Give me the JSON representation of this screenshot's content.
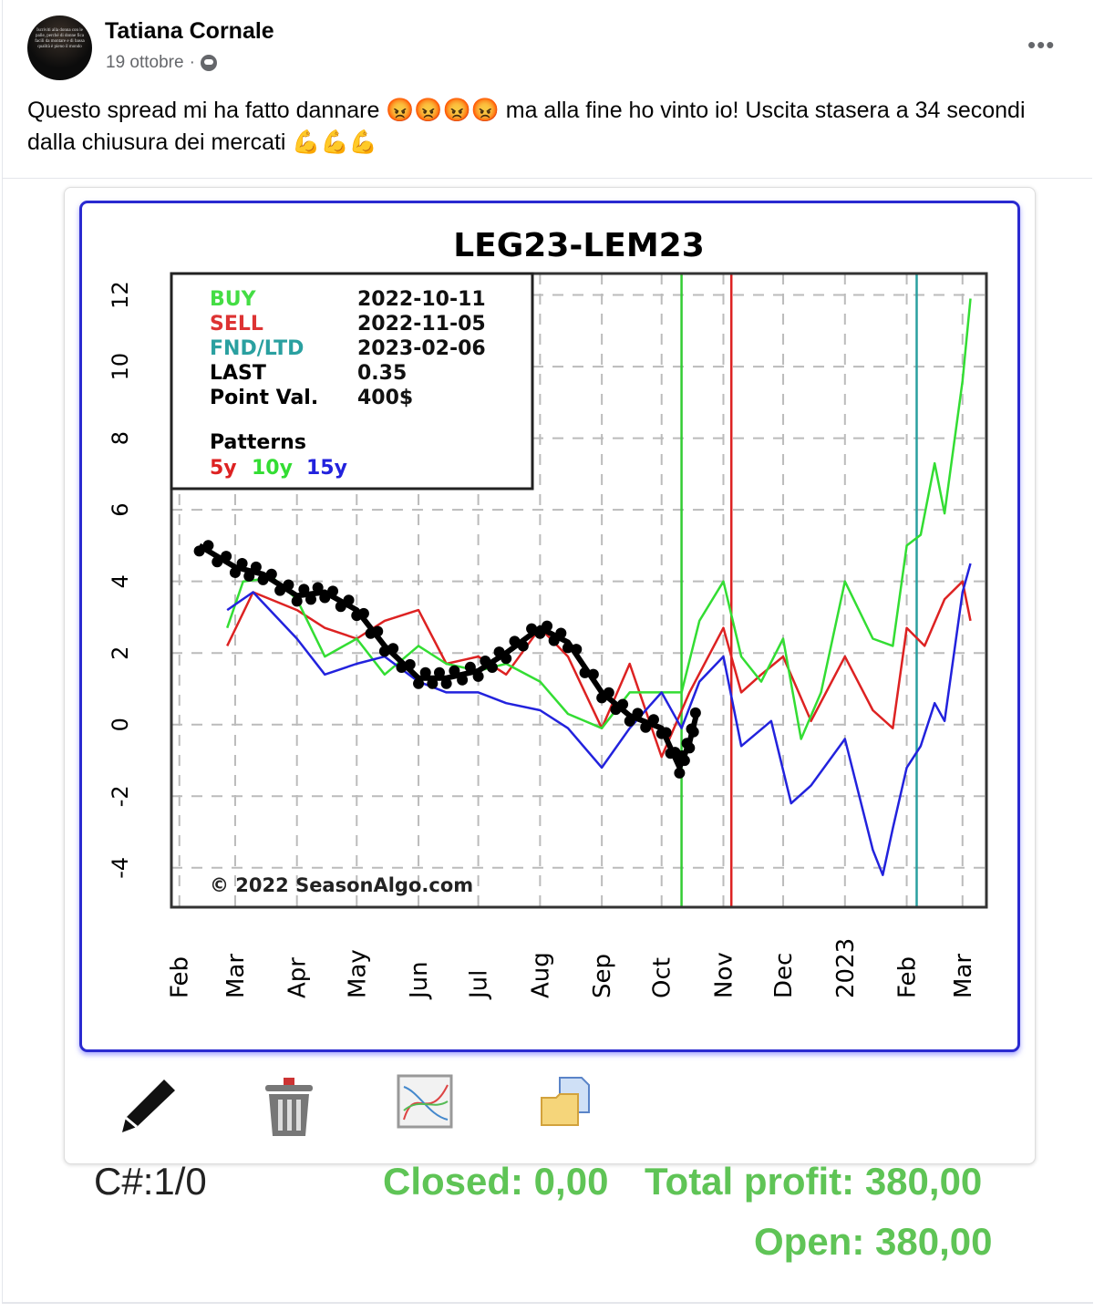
{
  "post": {
    "author": "Tatiana Cornale",
    "date": "19 ottobre",
    "separator": "·",
    "audience_icon": "public-globe-icon",
    "more_icon": "more-dots-icon",
    "more_label": "•••",
    "avatar_text": "Iscriviti alla donna con le palle, perché di donne fica facili da montare e di bassa qualità è pieno il mondo",
    "text": "Questo spread mi ha fatto dannare 😡😡😡😡 ma alla fine ho vinto io! Uscita stasera a 34 secondi dalla chiusura dei mercati 💪💪💪"
  },
  "toolbar": {
    "icons": [
      "pencil-icon",
      "trash-icon",
      "chart-icon",
      "folder-copy-icon"
    ]
  },
  "stats": {
    "count": "C#:1/0",
    "closed": "Closed: 0,00",
    "total_profit": "Total profit: 380,00",
    "open": "Open: 380,00",
    "profit_color": "#5fc456"
  },
  "chart_data": {
    "type": "line",
    "title": "LEG23-LEM23",
    "info": [
      {
        "label": "BUY",
        "value": "2022-10-11",
        "color": "#44dd44"
      },
      {
        "label": "SELL",
        "value": "2022-11-05",
        "color": "#dd3333"
      },
      {
        "label": "FND/LTD",
        "value": "2023-02-06",
        "color": "#2aa0a0"
      },
      {
        "label": "LAST",
        "value": "0.35",
        "color": "#000000"
      },
      {
        "label": "Point Val.",
        "value": "400$",
        "color": "#000000"
      }
    ],
    "patterns_label": "Patterns",
    "legend": [
      {
        "label": "5y",
        "color": "#dd2222"
      },
      {
        "label": "10y",
        "color": "#33dd33"
      },
      {
        "label": "15y",
        "color": "#2222dd"
      }
    ],
    "copyright": "© 2022 SeasonAlgo.com",
    "x_tick_labels": [
      "Feb",
      "Mar",
      "Apr",
      "May",
      "Jun",
      "Jul",
      "Aug",
      "Sep",
      "Oct",
      "Nov",
      "Dec",
      "2023",
      "Feb",
      "Mar"
    ],
    "x_ticks": [
      "2022-02-01",
      "2022-03-01",
      "2022-04-01",
      "2022-05-01",
      "2022-06-01",
      "2022-07-01",
      "2022-08-01",
      "2022-09-01",
      "2022-10-01",
      "2022-11-01",
      "2022-12-01",
      "2023-01-01",
      "2023-02-01",
      "2023-03-01"
    ],
    "xlim": [
      "2022-01-28",
      "2023-03-13"
    ],
    "y_ticks": [
      -4,
      -2,
      0,
      2,
      4,
      6,
      8,
      10,
      12
    ],
    "ylim": [
      -5.1,
      12.6
    ],
    "grid": true,
    "vlines": [
      {
        "date": "2022-10-11",
        "color": "#33cc33"
      },
      {
        "date": "2022-11-05",
        "color": "#dd2222"
      },
      {
        "date": "2023-02-06",
        "color": "#2aa0a0"
      }
    ],
    "series": [
      {
        "name": "5y",
        "color": "#dd2222",
        "points": [
          [
            "2022-02-25",
            2.2
          ],
          [
            "2022-03-10",
            3.7
          ],
          [
            "2022-04-01",
            3.2
          ],
          [
            "2022-04-15",
            2.7
          ],
          [
            "2022-05-01",
            2.4
          ],
          [
            "2022-05-15",
            2.9
          ],
          [
            "2022-06-01",
            3.2
          ],
          [
            "2022-06-15",
            1.7
          ],
          [
            "2022-07-01",
            1.9
          ],
          [
            "2022-07-15",
            1.4
          ],
          [
            "2022-08-01",
            2.7
          ],
          [
            "2022-08-15",
            1.9
          ],
          [
            "2022-09-01",
            -0.1
          ],
          [
            "2022-09-15",
            1.7
          ],
          [
            "2022-10-01",
            -0.9
          ],
          [
            "2022-10-15",
            0.9
          ],
          [
            "2022-11-01",
            2.7
          ],
          [
            "2022-11-10",
            0.9
          ],
          [
            "2022-11-20",
            1.4
          ],
          [
            "2022-12-01",
            1.9
          ],
          [
            "2022-12-15",
            0.1
          ],
          [
            "2023-01-01",
            1.9
          ],
          [
            "2023-01-15",
            0.4
          ],
          [
            "2023-01-25",
            -0.1
          ],
          [
            "2023-02-01",
            2.7
          ],
          [
            "2023-02-10",
            2.2
          ],
          [
            "2023-02-20",
            3.5
          ],
          [
            "2023-03-01",
            4.0
          ],
          [
            "2023-03-05",
            2.9
          ]
        ]
      },
      {
        "name": "10y",
        "color": "#33dd33",
        "points": [
          [
            "2022-02-25",
            2.7
          ],
          [
            "2022-03-05",
            4.0
          ],
          [
            "2022-03-20",
            4.1
          ],
          [
            "2022-04-01",
            3.5
          ],
          [
            "2022-04-15",
            1.9
          ],
          [
            "2022-05-01",
            2.4
          ],
          [
            "2022-05-15",
            1.4
          ],
          [
            "2022-06-01",
            2.2
          ],
          [
            "2022-06-15",
            1.7
          ],
          [
            "2022-07-01",
            1.5
          ],
          [
            "2022-07-15",
            1.7
          ],
          [
            "2022-08-01",
            1.2
          ],
          [
            "2022-08-15",
            0.3
          ],
          [
            "2022-09-01",
            -0.1
          ],
          [
            "2022-09-15",
            0.9
          ],
          [
            "2022-10-01",
            0.9
          ],
          [
            "2022-10-11",
            0.9
          ],
          [
            "2022-10-20",
            2.9
          ],
          [
            "2022-11-01",
            4.0
          ],
          [
            "2022-11-10",
            1.9
          ],
          [
            "2022-11-20",
            1.2
          ],
          [
            "2022-12-01",
            2.4
          ],
          [
            "2022-12-10",
            -0.4
          ],
          [
            "2022-12-20",
            0.9
          ],
          [
            "2023-01-01",
            4.0
          ],
          [
            "2023-01-15",
            2.4
          ],
          [
            "2023-01-25",
            2.2
          ],
          [
            "2023-02-01",
            5.0
          ],
          [
            "2023-02-08",
            5.3
          ],
          [
            "2023-02-15",
            7.3
          ],
          [
            "2023-02-20",
            5.9
          ],
          [
            "2023-03-01",
            9.6
          ],
          [
            "2023-03-05",
            11.9
          ]
        ]
      },
      {
        "name": "15y",
        "color": "#2222dd",
        "points": [
          [
            "2022-02-25",
            3.2
          ],
          [
            "2022-03-10",
            3.7
          ],
          [
            "2022-04-01",
            2.4
          ],
          [
            "2022-04-15",
            1.4
          ],
          [
            "2022-05-01",
            1.7
          ],
          [
            "2022-05-15",
            1.9
          ],
          [
            "2022-06-01",
            1.2
          ],
          [
            "2022-06-15",
            0.9
          ],
          [
            "2022-07-01",
            0.9
          ],
          [
            "2022-07-15",
            0.6
          ],
          [
            "2022-08-01",
            0.4
          ],
          [
            "2022-08-15",
            -0.1
          ],
          [
            "2022-09-01",
            -1.2
          ],
          [
            "2022-09-15",
            -0.1
          ],
          [
            "2022-10-01",
            0.9
          ],
          [
            "2022-10-11",
            -0.1
          ],
          [
            "2022-10-20",
            1.2
          ],
          [
            "2022-11-01",
            1.9
          ],
          [
            "2022-11-10",
            -0.6
          ],
          [
            "2022-11-25",
            0.1
          ],
          [
            "2022-12-05",
            -2.2
          ],
          [
            "2022-12-15",
            -1.7
          ],
          [
            "2023-01-01",
            -0.4
          ],
          [
            "2023-01-15",
            -3.5
          ],
          [
            "2023-01-20",
            -4.2
          ],
          [
            "2023-01-25",
            -2.9
          ],
          [
            "2023-02-01",
            -1.2
          ],
          [
            "2023-02-08",
            -0.6
          ],
          [
            "2023-02-15",
            0.6
          ],
          [
            "2023-02-20",
            0.1
          ],
          [
            "2023-03-01",
            3.7
          ],
          [
            "2023-03-05",
            4.5
          ]
        ]
      },
      {
        "name": "current",
        "color": "#000000",
        "points": [
          [
            "2022-02-11",
            5.0
          ],
          [
            "2022-03-01",
            4.4
          ],
          [
            "2022-03-15",
            4.2
          ],
          [
            "2022-04-01",
            3.6
          ],
          [
            "2022-04-15",
            3.7
          ],
          [
            "2022-05-01",
            3.2
          ],
          [
            "2022-05-15",
            2.2
          ],
          [
            "2022-06-01",
            1.3
          ],
          [
            "2022-06-15",
            1.3
          ],
          [
            "2022-07-01",
            1.5
          ],
          [
            "2022-07-15",
            2.0
          ],
          [
            "2022-08-01",
            2.7
          ],
          [
            "2022-08-15",
            2.3
          ],
          [
            "2022-09-01",
            0.9
          ],
          [
            "2022-09-15",
            0.25
          ],
          [
            "2022-10-01",
            -0.1
          ],
          [
            "2022-10-10",
            -1.2
          ],
          [
            "2022-10-15",
            -0.5
          ],
          [
            "2022-10-19",
            0.4
          ]
        ]
      }
    ]
  }
}
